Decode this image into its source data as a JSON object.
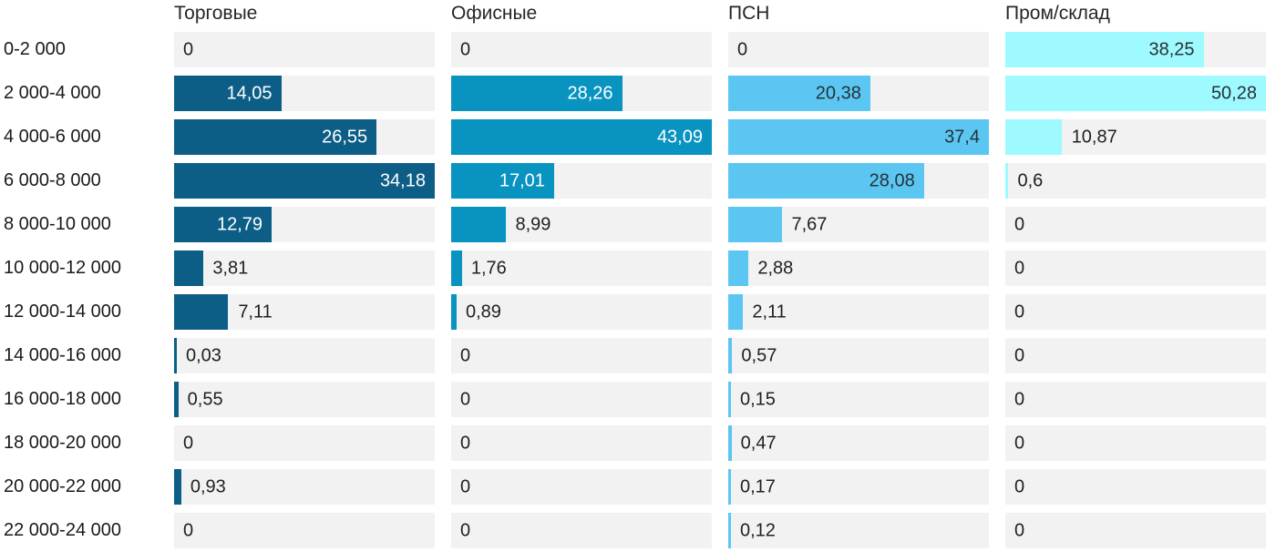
{
  "chart_data": {
    "type": "bar",
    "orientation": "horizontal",
    "scaling": "each column scaled independently so its max value fills the track",
    "track_color": "#f2f2f2",
    "outside_value_color": "#212121",
    "row_label_color": "#1a1a1a",
    "header_color": "#262626",
    "categories": [
      "0-2 000",
      "2 000-4 000",
      "4 000-6 000",
      "6 000-8 000",
      "8 000-10 000",
      "10 000-12 000",
      "12 000-14 000",
      "14 000-16 000",
      "16 000-18 000",
      "18 000-20 000",
      "20 000-22 000",
      "22 000-24 000"
    ],
    "series": [
      {
        "name": "Торговые",
        "color": "#0d5e86",
        "text_on_bar": "#ffffff",
        "values": [
          0,
          14.05,
          26.55,
          34.18,
          12.79,
          3.81,
          7.11,
          0.03,
          0.55,
          0,
          0.93,
          0
        ],
        "labels": [
          "0",
          "14,05",
          "26,55",
          "34,18",
          "12,79",
          "3,81",
          "7,11",
          "0,03",
          "0,55",
          "0",
          "0,93",
          "0"
        ]
      },
      {
        "name": "Офисные",
        "color": "#0993c1",
        "text_on_bar": "#ffffff",
        "values": [
          0,
          28.26,
          43.09,
          17.01,
          8.99,
          1.76,
          0.89,
          0,
          0,
          0,
          0,
          0
        ],
        "labels": [
          "0",
          "28,26",
          "43,09",
          "17,01",
          "8,99",
          "1,76",
          "0,89",
          "0",
          "0",
          "0",
          "0",
          "0"
        ]
      },
      {
        "name": "ПСН",
        "color": "#5bc6f2",
        "text_on_bar": "#263238",
        "values": [
          0,
          20.38,
          37.4,
          28.08,
          7.67,
          2.88,
          2.11,
          0.57,
          0.15,
          0.47,
          0.17,
          0.12
        ],
        "labels": [
          "0",
          "20,38",
          "37,4",
          "28,08",
          "7,67",
          "2,88",
          "2,11",
          "0,57",
          "0,15",
          "0,47",
          "0,17",
          "0,12"
        ]
      },
      {
        "name": "Пром/склад",
        "color": "#9ffaff",
        "text_on_bar": "#263238",
        "values": [
          38.25,
          50.28,
          10.87,
          0.6,
          0,
          0,
          0,
          0,
          0,
          0,
          0,
          0
        ],
        "labels": [
          "38,25",
          "50,28",
          "10,87",
          "0,6",
          "0",
          "0",
          "0",
          "0",
          "0",
          "0",
          "0",
          "0"
        ]
      }
    ]
  }
}
